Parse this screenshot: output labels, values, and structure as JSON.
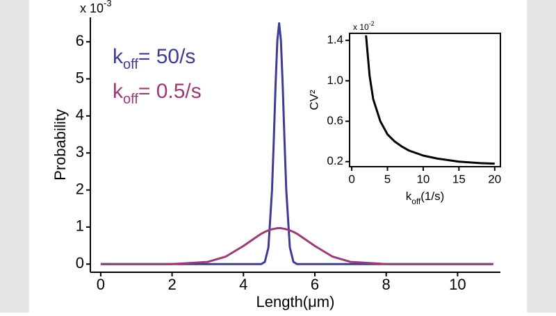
{
  "chart_data": [
    {
      "type": "line",
      "axis_multiplier": "x 10-3",
      "xlabel": "Length(μm)",
      "ylabel": "Probability",
      "x": [
        0,
        1,
        2,
        3,
        3.5,
        4,
        4.3,
        4.5,
        4.6,
        4.7,
        4.8,
        4.85,
        4.9,
        4.95,
        5,
        5.05,
        5.1,
        5.15,
        5.2,
        5.3,
        5.4,
        5.5,
        5.7,
        6,
        6.5,
        7,
        8,
        9,
        10,
        11
      ],
      "series": [
        {
          "name": "koff= 50/s",
          "color": "#3d3b94",
          "values": [
            0,
            0,
            0,
            0,
            0,
            0,
            0,
            0,
            0.06,
            0.45,
            1.99,
            3.34,
            4.83,
            6.04,
            6.5,
            6.04,
            4.83,
            3.34,
            1.99,
            0.45,
            0.06,
            0,
            0,
            0,
            0,
            0,
            0,
            0,
            0,
            0
          ]
        },
        {
          "name": "koff= 0.5/s",
          "color": "#9a3b76",
          "values": [
            0,
            0,
            0,
            0.06,
            0.2,
            0.49,
            0.69,
            0.82,
            0.87,
            0.91,
            0.94,
            0.95,
            0.96,
            0.97,
            0.97,
            0.97,
            0.96,
            0.95,
            0.94,
            0.91,
            0.87,
            0.82,
            0.69,
            0.49,
            0.2,
            0.06,
            0,
            0,
            0,
            0
          ]
        }
      ],
      "xlim": [
        -0.29,
        11.2
      ],
      "ylim": [
        -0.22,
        6.66
      ],
      "xticks": [
        0,
        2,
        4,
        6,
        8,
        10
      ],
      "yticks": [
        0,
        1,
        2,
        3,
        4,
        5,
        6
      ],
      "grid": false,
      "legend": "upper left"
    },
    {
      "type": "line",
      "axis_multiplier": "x 10-2",
      "xlabel": "koff(1/s)",
      "ylabel": "CV²",
      "x": [
        2,
        2.5,
        3,
        4,
        5,
        6,
        7,
        8,
        10,
        12,
        15,
        18,
        20
      ],
      "series": [
        {
          "color": "#000000",
          "values": [
            1.45,
            1.05,
            0.82,
            0.6,
            0.47,
            0.4,
            0.35,
            0.31,
            0.26,
            0.23,
            0.2,
            0.185,
            0.18
          ]
        }
      ],
      "xlim": [
        -0.3,
        20.8
      ],
      "ylim": [
        0.15,
        1.47
      ],
      "xticks": [
        0,
        5,
        10,
        15,
        20
      ],
      "yticks": [
        {
          "value": 0.2,
          "label": "0.2"
        },
        {
          "value": 0.6,
          "label": "0.6"
        },
        {
          "value": 1,
          "label": "1.0"
        },
        {
          "value": 1.4,
          "label": "1.4"
        }
      ],
      "grid": false
    }
  ]
}
